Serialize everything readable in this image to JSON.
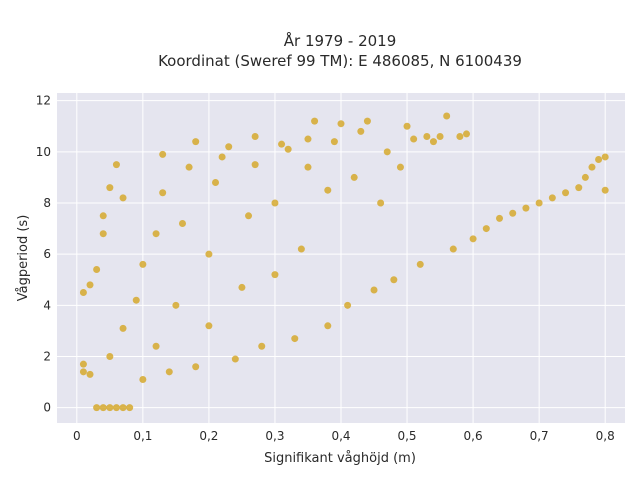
{
  "chart_data": {
    "type": "scatter",
    "title": [
      "År 1979 - 2019",
      "Koordinat (Sweref 99 TM): E 486085, N 6100439"
    ],
    "xlabel": "Signifikant våghöjd (m)",
    "ylabel": "Vågperiod (s)",
    "xlim": [
      -0.03,
      0.83
    ],
    "ylim": [
      -0.6,
      12.3
    ],
    "xticks": [
      0,
      0.1,
      0.2,
      0.3,
      0.4,
      0.5,
      0.6,
      0.7,
      0.8
    ],
    "xtick_labels": [
      "0",
      "0,1",
      "0,2",
      "0,3",
      "0,4",
      "0,5",
      "0,6",
      "0,7",
      "0,8"
    ],
    "yticks": [
      0,
      2,
      4,
      6,
      8,
      10,
      12
    ],
    "ytick_labels": [
      "0",
      "2",
      "4",
      "6",
      "8",
      "10",
      "12"
    ],
    "grid": true,
    "background": "#e5e5ef",
    "marker_color": "#d4a520",
    "series": [
      {
        "points": [
          [
            0.03,
            0.0
          ],
          [
            0.04,
            0.0
          ],
          [
            0.05,
            0.0
          ],
          [
            0.06,
            0.0
          ],
          [
            0.07,
            0.0
          ],
          [
            0.08,
            0.0
          ],
          [
            0.01,
            4.5
          ],
          [
            0.01,
            1.4
          ],
          [
            0.01,
            1.7
          ],
          [
            0.02,
            1.3
          ],
          [
            0.02,
            4.8
          ],
          [
            0.03,
            5.4
          ],
          [
            0.04,
            6.8
          ],
          [
            0.04,
            7.5
          ],
          [
            0.05,
            8.6
          ],
          [
            0.06,
            9.5
          ],
          [
            0.07,
            8.2
          ],
          [
            0.05,
            2.0
          ],
          [
            0.07,
            3.1
          ],
          [
            0.09,
            4.2
          ],
          [
            0.1,
            5.6
          ],
          [
            0.1,
            1.1
          ],
          [
            0.12,
            2.4
          ],
          [
            0.12,
            6.8
          ],
          [
            0.13,
            8.4
          ],
          [
            0.13,
            9.9
          ],
          [
            0.14,
            1.4
          ],
          [
            0.15,
            4.0
          ],
          [
            0.16,
            7.2
          ],
          [
            0.17,
            9.4
          ],
          [
            0.18,
            10.4
          ],
          [
            0.18,
            1.6
          ],
          [
            0.2,
            3.2
          ],
          [
            0.2,
            6.0
          ],
          [
            0.21,
            8.8
          ],
          [
            0.22,
            9.8
          ],
          [
            0.23,
            10.2
          ],
          [
            0.24,
            1.9
          ],
          [
            0.25,
            4.7
          ],
          [
            0.26,
            7.5
          ],
          [
            0.27,
            10.6
          ],
          [
            0.27,
            9.5
          ],
          [
            0.28,
            2.4
          ],
          [
            0.3,
            5.2
          ],
          [
            0.3,
            8.0
          ],
          [
            0.31,
            10.3
          ],
          [
            0.32,
            10.1
          ],
          [
            0.33,
            2.7
          ],
          [
            0.34,
            6.2
          ],
          [
            0.35,
            9.4
          ],
          [
            0.35,
            10.5
          ],
          [
            0.36,
            11.2
          ],
          [
            0.38,
            3.2
          ],
          [
            0.38,
            8.5
          ],
          [
            0.39,
            10.4
          ],
          [
            0.4,
            11.1
          ],
          [
            0.41,
            4.0
          ],
          [
            0.42,
            9.0
          ],
          [
            0.43,
            10.8
          ],
          [
            0.44,
            11.2
          ],
          [
            0.45,
            4.6
          ],
          [
            0.46,
            8.0
          ],
          [
            0.47,
            10.0
          ],
          [
            0.48,
            5.0
          ],
          [
            0.49,
            9.4
          ],
          [
            0.5,
            11.0
          ],
          [
            0.51,
            10.5
          ],
          [
            0.52,
            5.6
          ],
          [
            0.53,
            10.6
          ],
          [
            0.54,
            10.4
          ],
          [
            0.55,
            10.6
          ],
          [
            0.56,
            11.4
          ],
          [
            0.57,
            6.2
          ],
          [
            0.58,
            10.6
          ],
          [
            0.59,
            10.7
          ],
          [
            0.6,
            6.6
          ],
          [
            0.62,
            7.0
          ],
          [
            0.64,
            7.4
          ],
          [
            0.66,
            7.6
          ],
          [
            0.68,
            7.8
          ],
          [
            0.7,
            8.0
          ],
          [
            0.72,
            8.2
          ],
          [
            0.74,
            8.4
          ],
          [
            0.76,
            8.6
          ],
          [
            0.77,
            9.0
          ],
          [
            0.78,
            9.4
          ],
          [
            0.79,
            9.7
          ],
          [
            0.8,
            9.8
          ],
          [
            0.8,
            8.5
          ]
        ]
      }
    ]
  }
}
